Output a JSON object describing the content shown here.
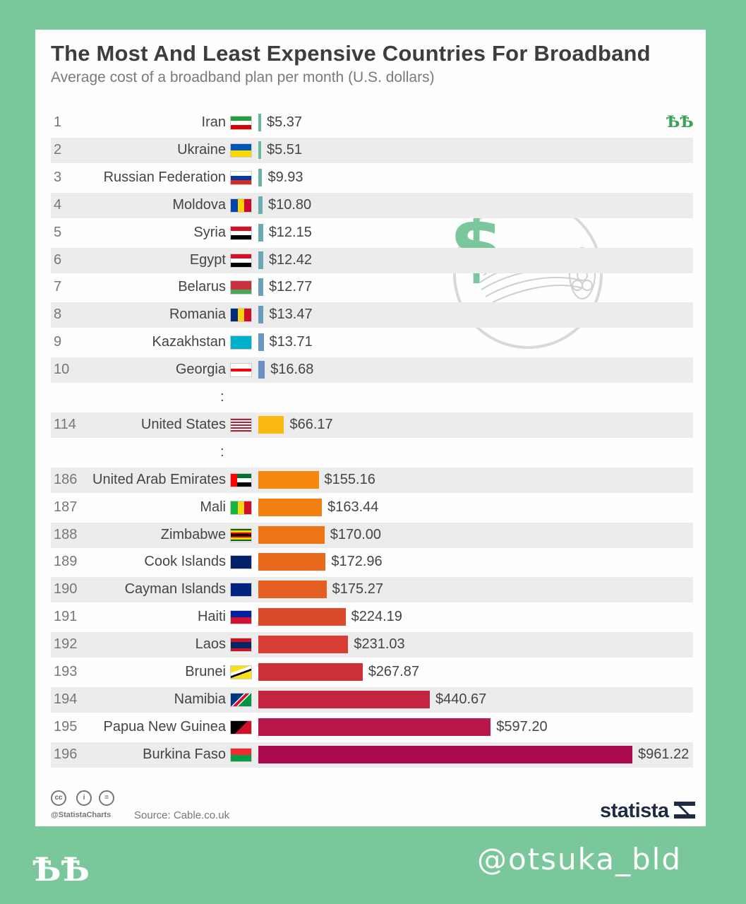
{
  "title": "The Most And Least Expensive Countries For Broadband",
  "subtitle": "Average cost of a broadband plan per month (U.S. dollars)",
  "separator": ":",
  "footer": {
    "tag": "@StatistaCharts",
    "source": "Source: Cable.co.uk",
    "logo": "statista"
  },
  "watermark": "@otsuka_bld",
  "mark": "ѢѢ",
  "chart_data": {
    "type": "bar",
    "orientation": "horizontal",
    "title": "The Most And Least Expensive Countries For Broadband",
    "subtitle": "Average cost of a broadband plan per month (U.S. dollars)",
    "rows": [
      {
        "rank": "1",
        "country": "Iran",
        "value": 5.37,
        "label": "$5.37",
        "color": "#67b99a",
        "flag": "iran"
      },
      {
        "rank": "2",
        "country": "Ukraine",
        "value": 5.51,
        "label": "$5.51",
        "color": "#67b99a",
        "flag": "ukraine"
      },
      {
        "rank": "3",
        "country": "Russian Federation",
        "value": 9.93,
        "label": "$9.93",
        "color": "#6ab3a6",
        "flag": "russia"
      },
      {
        "rank": "4",
        "country": "Moldova",
        "value": 10.8,
        "label": "$10.80",
        "color": "#6aaeb0",
        "flag": "moldova"
      },
      {
        "rank": "5",
        "country": "Syria",
        "value": 12.15,
        "label": "$12.15",
        "color": "#6aaab4",
        "flag": "syria"
      },
      {
        "rank": "6",
        "country": "Egypt",
        "value": 12.42,
        "label": "$12.42",
        "color": "#6aa5b8",
        "flag": "egypt"
      },
      {
        "rank": "7",
        "country": "Belarus",
        "value": 12.77,
        "label": "$12.77",
        "color": "#6aa0bc",
        "flag": "belarus"
      },
      {
        "rank": "8",
        "country": "Romania",
        "value": 13.47,
        "label": "$13.47",
        "color": "#6a9bbf",
        "flag": "romania"
      },
      {
        "rank": "9",
        "country": "Kazakhstan",
        "value": 13.71,
        "label": "$13.71",
        "color": "#6a96c2",
        "flag": "kazakhstan"
      },
      {
        "rank": "10",
        "country": "Georgia",
        "value": 16.68,
        "label": "$16.68",
        "color": "#6a90c6",
        "flag": "georgia"
      },
      {
        "rank": "114",
        "country": "United States",
        "value": 66.17,
        "label": "$66.17",
        "color": "#fbb810",
        "flag": "usa"
      },
      {
        "rank": "186",
        "country": "United Arab Emirates",
        "value": 155.16,
        "label": "$155.16",
        "color": "#f4880e",
        "flag": "uae"
      },
      {
        "rank": "187",
        "country": "Mali",
        "value": 163.44,
        "label": "$163.44",
        "color": "#f17f12",
        "flag": "mali"
      },
      {
        "rank": "188",
        "country": "Zimbabwe",
        "value": 170.0,
        "label": "$170.00",
        "color": "#ed7516",
        "flag": "zimbabwe"
      },
      {
        "rank": "189",
        "country": "Cook Islands",
        "value": 172.96,
        "label": "$172.96",
        "color": "#e96a1c",
        "flag": "cook"
      },
      {
        "rank": "190",
        "country": "Cayman Islands",
        "value": 175.27,
        "label": "$175.27",
        "color": "#e55e22",
        "flag": "cayman"
      },
      {
        "rank": "191",
        "country": "Haiti",
        "value": 224.19,
        "label": "$224.19",
        "color": "#dc4a2c",
        "flag": "haiti"
      },
      {
        "rank": "192",
        "country": "Laos",
        "value": 231.03,
        "label": "$231.03",
        "color": "#d63d33",
        "flag": "laos"
      },
      {
        "rank": "193",
        "country": "Brunei",
        "value": 267.87,
        "label": "$267.87",
        "color": "#cd3138",
        "flag": "brunei"
      },
      {
        "rank": "194",
        "country": "Namibia",
        "value": 440.67,
        "label": "$440.67",
        "color": "#c4243f",
        "flag": "namibia"
      },
      {
        "rank": "195",
        "country": "Papua New Guinea",
        "value": 597.2,
        "label": "$597.20",
        "color": "#b91649",
        "flag": "png"
      },
      {
        "rank": "196",
        "country": "Burkina Faso",
        "value": 961.22,
        "label": "$961.22",
        "color": "#ab0a4f",
        "flag": "burkina"
      }
    ],
    "gaps_after_rank": [
      "10",
      "114"
    ],
    "xlim": [
      0,
      961.22
    ],
    "grid": false,
    "legend": "none"
  }
}
